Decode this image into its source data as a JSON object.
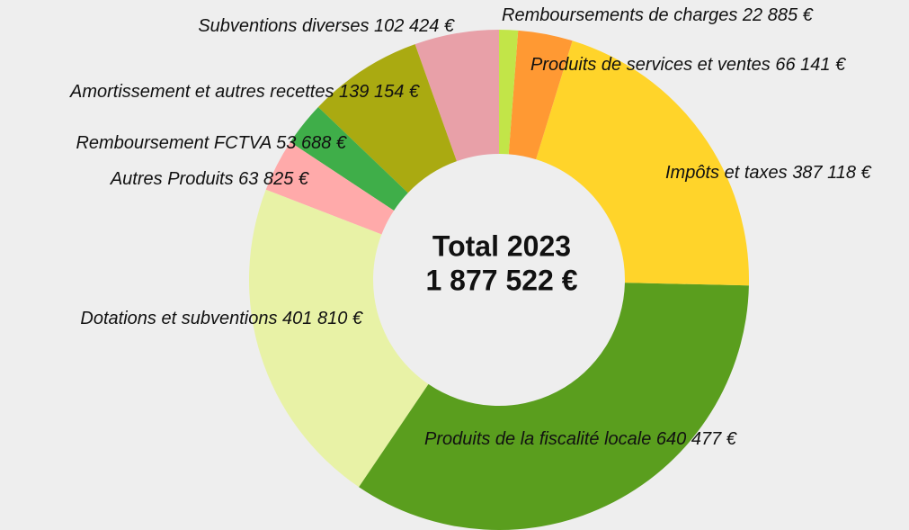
{
  "chart_data": {
    "type": "donut",
    "categories": [
      "Remboursements de charges",
      "Produits de services et ventes",
      "Impôts et taxes",
      "Produits de la fiscalité locale",
      "Dotations et subventions",
      "Autres Produits",
      "Remboursement FCTVA",
      "Amortissement et autres recettes",
      "Subventions diverses"
    ],
    "values": [
      22885,
      66141,
      387118,
      640477,
      401810,
      63825,
      53688,
      139154,
      102424
    ],
    "value_labels": [
      "22 885 €",
      "66 141 €",
      "387 118 €",
      "640 477 €",
      "401 810 €",
      "63 825 €",
      "53 688 €",
      "139 154 €",
      "102 424 €"
    ],
    "colors": [
      "#c2e548",
      "#ff9933",
      "#ffd42a",
      "#5a9e1e",
      "#e8f2a6",
      "#ffaaaa",
      "#3fae49",
      "#aaaa11",
      "#e8a0a8"
    ],
    "center_title": "Total 2023",
    "center_value": "1 877 522 €"
  }
}
